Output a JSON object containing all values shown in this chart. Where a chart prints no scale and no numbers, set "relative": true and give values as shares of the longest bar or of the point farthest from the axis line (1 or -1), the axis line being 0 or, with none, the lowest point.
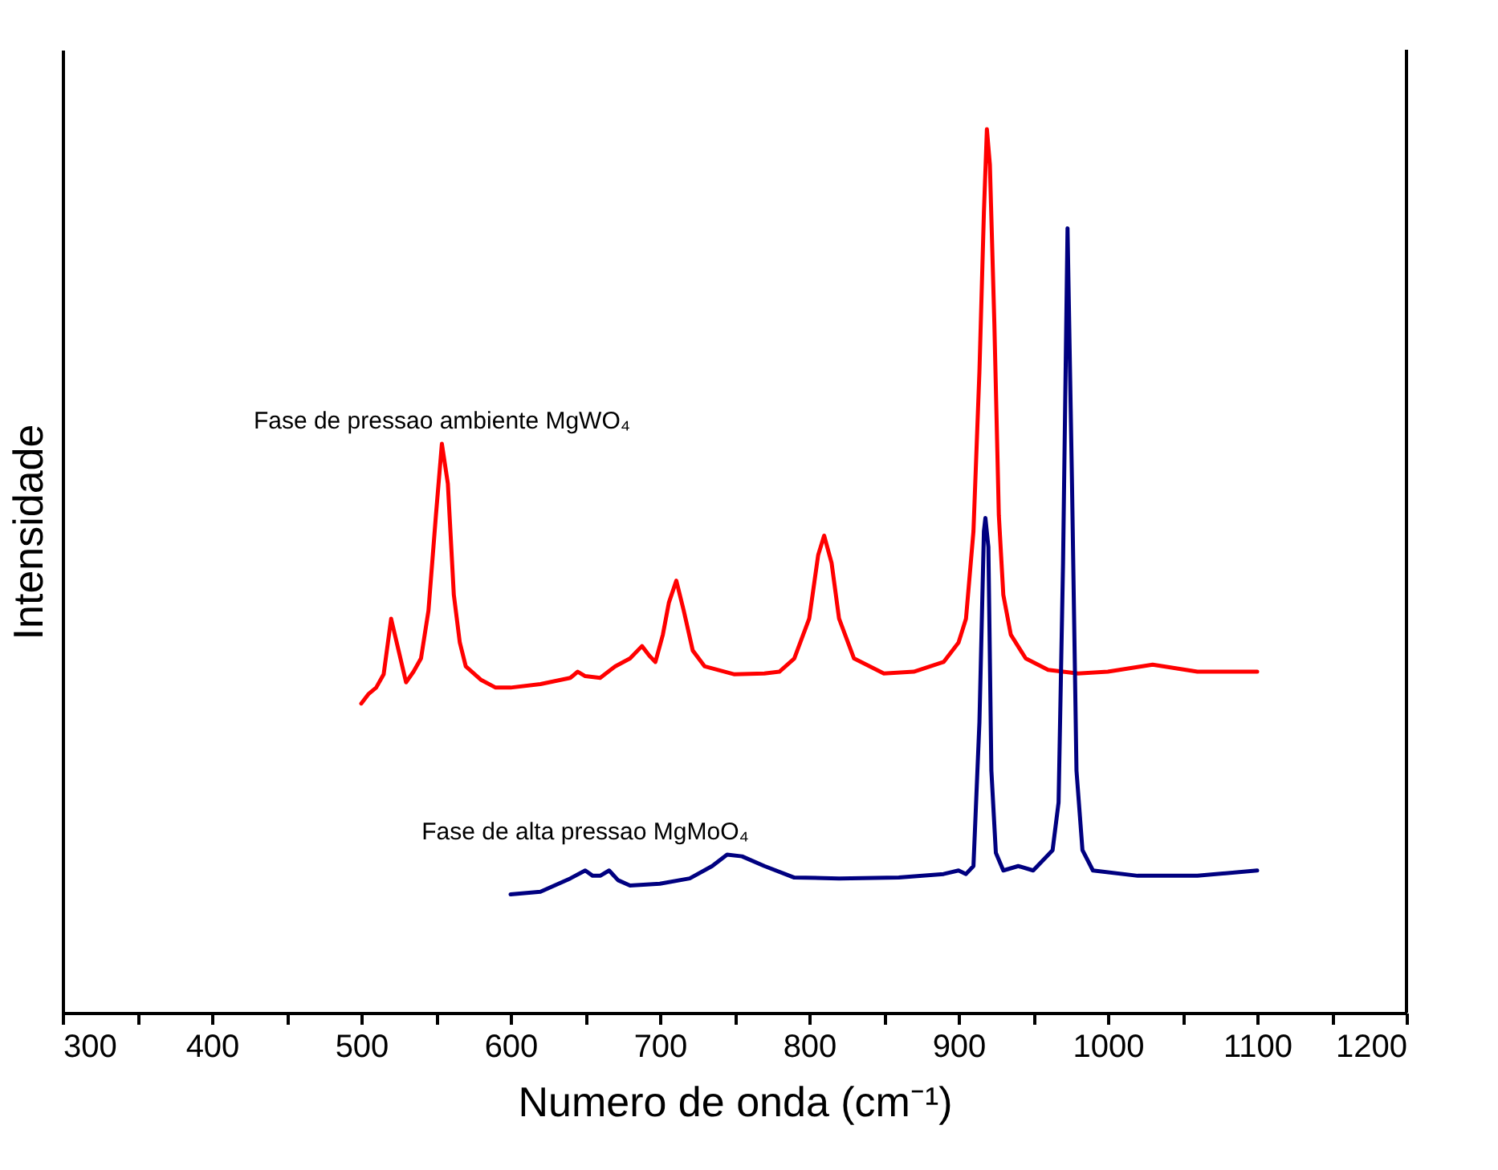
{
  "chart_data": {
    "type": "line",
    "relative": true,
    "xlabel": "Numero de onda (cm⁻¹)",
    "ylabel": "Intensidade",
    "xlim": [
      300,
      1200
    ],
    "xticks": [
      300,
      {
        "value": 350,
        "label": null
      },
      400,
      {
        "value": 450,
        "label": null
      },
      500,
      {
        "value": 550,
        "label": null
      },
      600,
      {
        "value": 650,
        "label": null
      },
      700,
      {
        "value": 750,
        "label": null
      },
      800,
      {
        "value": 850,
        "label": null
      },
      900,
      {
        "value": 950,
        "label": null
      },
      1000,
      {
        "value": 1050,
        "label": null
      },
      1100,
      {
        "value": 1150,
        "label": null
      },
      1200
    ],
    "tick_labels": "x",
    "grid": false,
    "legend": false,
    "line_style": "solid",
    "marker": "none",
    "series": [
      {
        "name": "Fase de pressao ambiente MgWO₄",
        "color": "#ff0000",
        "x": [
          500,
          505,
          510,
          515,
          520,
          525,
          530,
          535,
          540,
          545,
          550,
          554,
          558,
          562,
          566,
          570,
          580,
          590,
          600,
          620,
          640,
          645,
          650,
          660,
          670,
          680,
          688,
          693,
          697,
          702,
          706,
          711,
          716,
          722,
          730,
          750,
          770,
          780,
          790,
          800,
          806,
          810,
          815,
          820,
          830,
          850,
          870,
          890,
          900,
          905,
          910,
          914,
          917,
          919,
          921,
          924,
          927,
          930,
          935,
          945,
          960,
          980,
          1000,
          1030,
          1060,
          1100
        ],
        "values": [
          0.35,
          0.361,
          0.368,
          0.383,
          0.446,
          0.41,
          0.374,
          0.386,
          0.401,
          0.455,
          0.563,
          0.644,
          0.599,
          0.473,
          0.419,
          0.392,
          0.377,
          0.368,
          0.368,
          0.372,
          0.379,
          0.386,
          0.381,
          0.379,
          0.392,
          0.401,
          0.415,
          0.404,
          0.397,
          0.428,
          0.464,
          0.489,
          0.455,
          0.41,
          0.392,
          0.383,
          0.384,
          0.386,
          0.401,
          0.446,
          0.518,
          0.54,
          0.509,
          0.446,
          0.401,
          0.384,
          0.386,
          0.397,
          0.419,
          0.446,
          0.545,
          0.726,
          0.906,
          1.0,
          0.96,
          0.78,
          0.563,
          0.473,
          0.428,
          0.401,
          0.388,
          0.384,
          0.386,
          0.394,
          0.386,
          0.386
        ]
      },
      {
        "name": "Fase de alta pressao MgMoO₄",
        "color": "#000080",
        "x": [
          600,
          620,
          640,
          650,
          655,
          660,
          666,
          672,
          680,
          700,
          720,
          735,
          745,
          755,
          770,
          790,
          820,
          860,
          890,
          900,
          905,
          910,
          914,
          917,
          918,
          920,
          922,
          925,
          930,
          940,
          950,
          958,
          963,
          967,
          970,
          973,
          976,
          979,
          983,
          990,
          1020,
          1060,
          1100
        ],
        "values": [
          0.134,
          0.137,
          0.152,
          0.161,
          0.155,
          0.155,
          0.161,
          0.15,
          0.144,
          0.146,
          0.152,
          0.166,
          0.179,
          0.177,
          0.166,
          0.153,
          0.152,
          0.153,
          0.157,
          0.161,
          0.157,
          0.166,
          0.329,
          0.545,
          0.56,
          0.527,
          0.274,
          0.181,
          0.161,
          0.166,
          0.161,
          0.175,
          0.184,
          0.238,
          0.509,
          0.888,
          0.599,
          0.274,
          0.184,
          0.161,
          0.155,
          0.155,
          0.161
        ]
      }
    ]
  }
}
